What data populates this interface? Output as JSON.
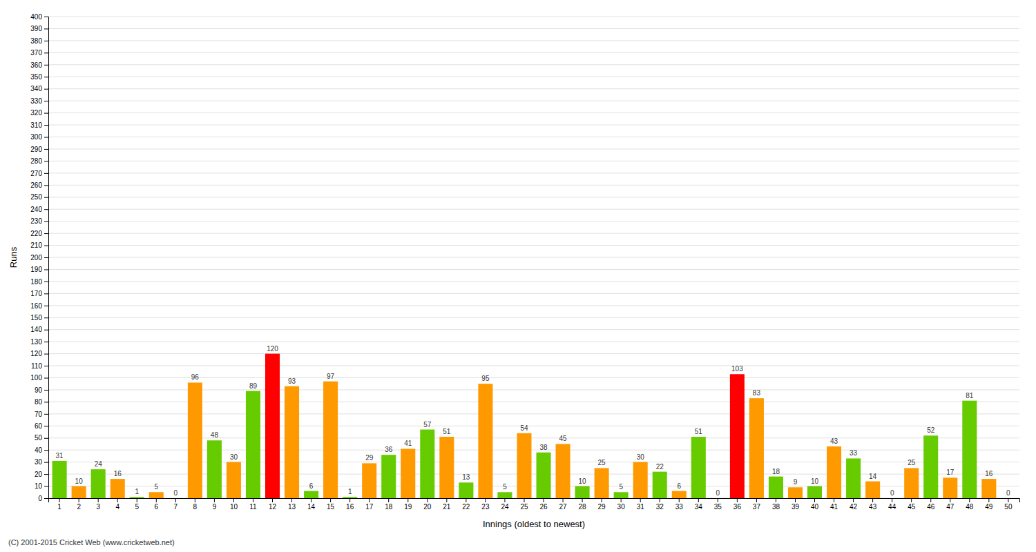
{
  "chart_data": {
    "type": "bar",
    "xlabel": "Innings (oldest to newest)",
    "ylabel": "Runs",
    "footer": "(C) 2001-2015 Cricket Web (www.cricketweb.net)",
    "categories": [
      "1",
      "2",
      "3",
      "4",
      "5",
      "6",
      "7",
      "8",
      "9",
      "10",
      "11",
      "12",
      "13",
      "14",
      "15",
      "16",
      "17",
      "18",
      "19",
      "20",
      "21",
      "22",
      "23",
      "24",
      "25",
      "26",
      "27",
      "28",
      "29",
      "30",
      "31",
      "32",
      "33",
      "34",
      "35",
      "36",
      "37",
      "38",
      "39",
      "40",
      "41",
      "42",
      "43",
      "44",
      "45",
      "46",
      "47",
      "48",
      "49",
      "50"
    ],
    "values": [
      31,
      10,
      24,
      16,
      1,
      5,
      0,
      96,
      48,
      30,
      89,
      120,
      93,
      6,
      97,
      1,
      29,
      36,
      41,
      57,
      51,
      13,
      95,
      5,
      54,
      38,
      45,
      10,
      25,
      5,
      30,
      22,
      6,
      51,
      0,
      103,
      83,
      18,
      9,
      10,
      43,
      33,
      14,
      0,
      25,
      52,
      17,
      81,
      16,
      0
    ],
    "colors": [
      "#66cc00",
      "#ff9900",
      "#66cc00",
      "#ff9900",
      "#66cc00",
      "#ff9900",
      "#66cc00",
      "#ff9900",
      "#66cc00",
      "#ff9900",
      "#66cc00",
      "#ff0000",
      "#ff9900",
      "#66cc00",
      "#ff9900",
      "#66cc00",
      "#ff9900",
      "#66cc00",
      "#ff9900",
      "#66cc00",
      "#ff9900",
      "#66cc00",
      "#ff9900",
      "#66cc00",
      "#ff9900",
      "#66cc00",
      "#ff9900",
      "#66cc00",
      "#ff9900",
      "#66cc00",
      "#ff9900",
      "#66cc00",
      "#ff9900",
      "#66cc00",
      "#ff9900",
      "#ff0000",
      "#ff9900",
      "#66cc00",
      "#ff9900",
      "#66cc00",
      "#ff9900",
      "#66cc00",
      "#ff9900",
      "#66cc00",
      "#ff9900",
      "#66cc00",
      "#ff9900",
      "#66cc00",
      "#ff9900",
      "#66cc00"
    ],
    "ylim": [
      0,
      400
    ],
    "yticks": [
      0,
      10,
      20,
      30,
      40,
      50,
      60,
      70,
      80,
      90,
      100,
      110,
      120,
      130,
      140,
      150,
      160,
      170,
      180,
      190,
      200,
      210,
      220,
      230,
      240,
      250,
      260,
      270,
      280,
      290,
      300,
      310,
      320,
      330,
      340,
      350,
      360,
      370,
      380,
      390,
      400
    ],
    "grid": true,
    "data_labels": true
  }
}
